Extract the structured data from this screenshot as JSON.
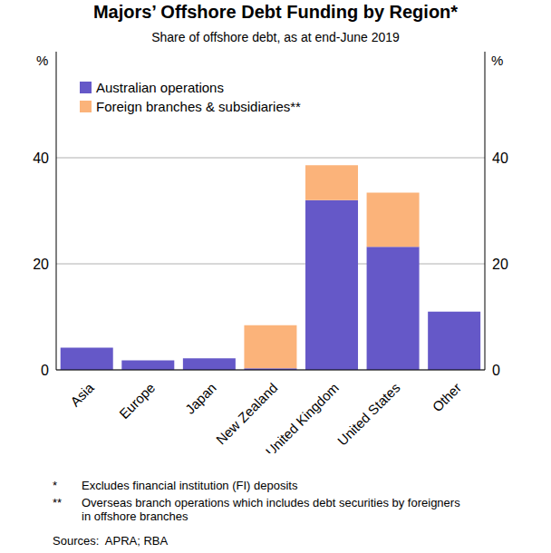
{
  "chart_data": {
    "type": "bar",
    "title": "Majors’ Offshore Debt Funding by Region*",
    "subtitle": "Share of offshore debt, as at end-June 2019",
    "y_label": "%",
    "categories": [
      "Asia",
      "Europe",
      "Japan",
      "New Zealand",
      "United Kingdom",
      "United States",
      "Other"
    ],
    "series": [
      {
        "name": "Australian operations",
        "color": "#6558c8",
        "values": [
          4.2,
          1.8,
          2.2,
          0.3,
          32,
          23.2,
          11
        ]
      },
      {
        "name": "Foreign branches & subsidiaries**",
        "color": "#fbb37a",
        "values": [
          0,
          0,
          0,
          8.1,
          6.6,
          10.2,
          0
        ]
      }
    ],
    "stacked": true,
    "ylim": [
      0,
      60
    ],
    "yticks": [
      0,
      20,
      40
    ],
    "grid": true,
    "legend": "upper left",
    "notes": [
      {
        "mark": "*",
        "text": "Excludes financial institution (FI) deposits"
      },
      {
        "mark": "**",
        "text": "Overseas branch operations which includes debt securities by foreigners in offshore branches"
      }
    ],
    "sources": "Sources:  APRA; RBA"
  }
}
